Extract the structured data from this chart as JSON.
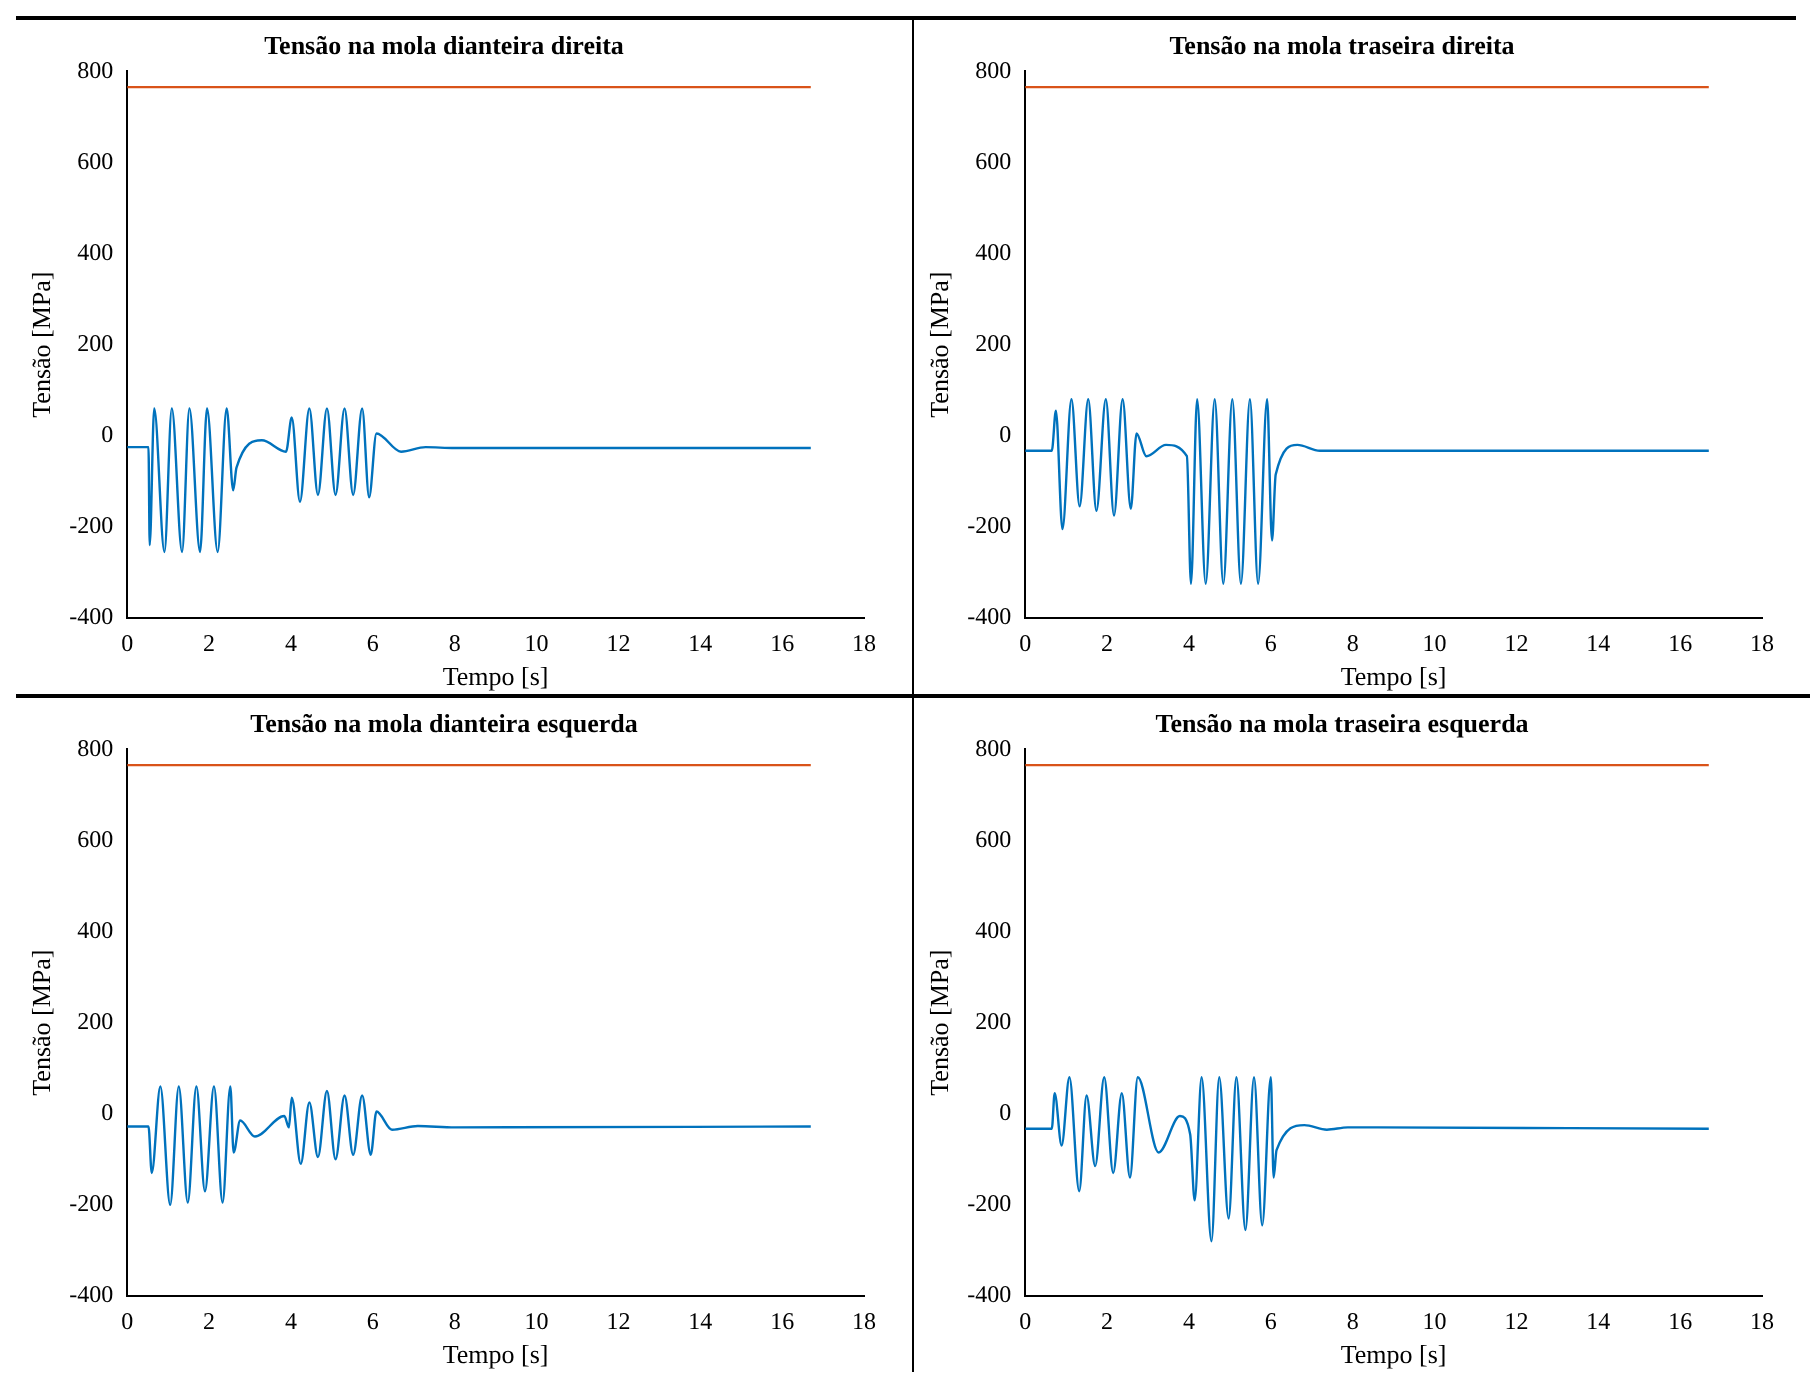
{
  "chart_data": [
    {
      "type": "line",
      "title": "Tensão na mola dianteira direita",
      "xlabel": "Tempo [s]",
      "ylabel": "Tensão [MPa]",
      "xlim": [
        0,
        18
      ],
      "xticks": [
        0,
        2,
        4,
        6,
        8,
        10,
        12,
        14,
        16,
        18
      ],
      "ylim": [
        -400,
        800
      ],
      "yticks": [
        -400,
        -200,
        0,
        200,
        400,
        600,
        800
      ],
      "grid": false,
      "legend": false,
      "marker": "none",
      "series": [
        {
          "color": "#0072bd",
          "x": [
            0,
            0.52,
            0.55,
            0.66,
            0.91,
            1.09,
            1.34,
            1.52,
            1.78,
            1.95,
            2.21,
            2.43,
            2.59,
            2.67,
            3.29,
            3.88,
            4.02,
            4.22,
            4.45,
            4.66,
            4.88,
            5.09,
            5.31,
            5.52,
            5.74,
            5.91,
            6.09,
            6.69,
            7.29,
            8,
            16.7
          ],
          "values": [
            -25,
            -25,
            -240,
            60,
            -255,
            60,
            -255,
            60,
            -255,
            60,
            -255,
            60,
            -120,
            -70,
            -10,
            -35,
            40,
            -145,
            60,
            -130,
            60,
            -130,
            60,
            -130,
            60,
            -135,
            5,
            -35,
            -25,
            -27,
            -27
          ]
        },
        {
          "color": "#d95319",
          "x": [
            0,
            16.7
          ],
          "values": [
            765,
            765
          ]
        }
      ]
    },
    {
      "type": "line",
      "title": "Tensão na mola traseira direita",
      "xlabel": "Tempo [s]",
      "ylabel": "Tensão [MPa]",
      "xlim": [
        0,
        18
      ],
      "xticks": [
        0,
        2,
        4,
        6,
        8,
        10,
        12,
        14,
        16,
        18
      ],
      "ylim": [
        -400,
        800
      ],
      "yticks": [
        -400,
        -200,
        0,
        200,
        400,
        600,
        800
      ],
      "grid": false,
      "legend": false,
      "marker": "none",
      "series": [
        {
          "color": "#0072bd",
          "x": [
            0,
            0.65,
            0.75,
            0.91,
            1.13,
            1.33,
            1.54,
            1.74,
            1.97,
            2.17,
            2.38,
            2.58,
            2.72,
            2.96,
            3.44,
            3.95,
            4.05,
            4.2,
            4.41,
            4.63,
            4.84,
            5.06,
            5.27,
            5.49,
            5.69,
            5.91,
            6.03,
            6.12,
            6.65,
            7.2,
            16.7
          ],
          "values": [
            -33,
            -33,
            55,
            -205,
            80,
            -155,
            80,
            -165,
            80,
            -175,
            80,
            -160,
            5,
            -45,
            -20,
            -45,
            -325,
            80,
            -325,
            80,
            -325,
            80,
            -325,
            80,
            -325,
            80,
            -230,
            -85,
            -20,
            -33,
            -33
          ]
        },
        {
          "color": "#d95319",
          "x": [
            0,
            16.7
          ],
          "values": [
            765,
            765
          ]
        }
      ]
    },
    {
      "type": "line",
      "title": "Tensão na mola dianteira esquerda",
      "xlabel": "Tempo [s]",
      "ylabel": "Tensão [MPa]",
      "xlim": [
        0,
        18
      ],
      "xticks": [
        0,
        2,
        4,
        6,
        8,
        10,
        12,
        14,
        16,
        18
      ],
      "ylim": [
        -400,
        800
      ],
      "yticks": [
        -400,
        -200,
        0,
        200,
        400,
        600,
        800
      ],
      "grid": false,
      "legend": false,
      "marker": "none",
      "series": [
        {
          "color": "#0072bd",
          "x": [
            0,
            0.52,
            0.6,
            0.81,
            1.05,
            1.26,
            1.48,
            1.69,
            1.9,
            2.12,
            2.33,
            2.52,
            2.6,
            2.76,
            3.12,
            3.84,
            3.95,
            4.02,
            4.24,
            4.45,
            4.66,
            4.88,
            5.09,
            5.31,
            5.52,
            5.74,
            5.95,
            6.09,
            6.47,
            7.1,
            8,
            16.7
          ],
          "values": [
            -28,
            -28,
            -130,
            60,
            -200,
            60,
            -195,
            60,
            -170,
            60,
            -195,
            60,
            -85,
            -15,
            -50,
            -5,
            -30,
            35,
            -110,
            25,
            -95,
            50,
            -100,
            40,
            -90,
            40,
            -90,
            5,
            -35,
            -27,
            -30,
            -28
          ]
        },
        {
          "color": "#d95319",
          "x": [
            0,
            16.7
          ],
          "values": [
            765,
            765
          ]
        }
      ]
    },
    {
      "type": "line",
      "title": "Tensão na mola traseira esquerda",
      "xlabel": "Tempo [s]",
      "ylabel": "Tensão [MPa]",
      "xlim": [
        0,
        18
      ],
      "xticks": [
        0,
        2,
        4,
        6,
        8,
        10,
        12,
        14,
        16,
        18
      ],
      "ylim": [
        -400,
        800
      ],
      "yticks": [
        -400,
        -200,
        0,
        200,
        400,
        600,
        800
      ],
      "grid": false,
      "legend": false,
      "marker": "none",
      "series": [
        {
          "color": "#0072bd",
          "x": [
            0,
            0.65,
            0.72,
            0.89,
            1.08,
            1.32,
            1.5,
            1.71,
            1.93,
            2.15,
            2.36,
            2.56,
            2.75,
            3.26,
            3.78,
            4.03,
            4.14,
            4.31,
            4.55,
            4.74,
            4.97,
            5.16,
            5.38,
            5.59,
            5.79,
            6,
            6.07,
            6.14,
            6.82,
            7.37,
            7.88,
            16.7
          ],
          "values": [
            -33,
            -33,
            45,
            -70,
            80,
            -170,
            40,
            -115,
            80,
            -130,
            45,
            -140,
            80,
            -85,
            -5,
            -45,
            -190,
            80,
            -280,
            80,
            -230,
            80,
            -255,
            80,
            -245,
            80,
            -140,
            -80,
            -25,
            -35,
            -30,
            -33
          ]
        },
        {
          "color": "#d95319",
          "x": [
            0,
            16.7
          ],
          "values": [
            765,
            765
          ]
        }
      ]
    }
  ]
}
